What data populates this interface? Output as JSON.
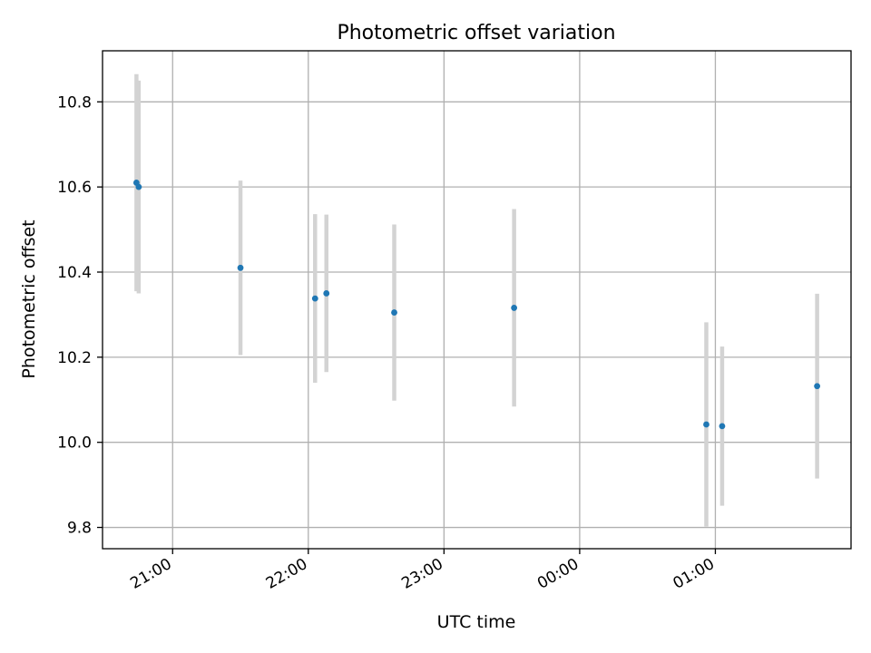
{
  "chart_data": {
    "type": "scatter",
    "title": "Photometric offset variation",
    "xlabel": "UTC time",
    "ylabel": "Photometric offset",
    "x_ticks": [
      "21:00",
      "22:00",
      "23:00",
      "00:00",
      "01:00"
    ],
    "y_ticks": [
      "9.8",
      "10.0",
      "10.2",
      "10.4",
      "10.6",
      "10.8"
    ],
    "xlim": [
      "20:29",
      "02:00"
    ],
    "ylim": [
      9.75,
      10.92
    ],
    "grid": true,
    "colors": {
      "point": "#1f77b4",
      "errorbar": "#d3d3d3",
      "grid": "#b0b0b0"
    },
    "points": [
      {
        "x": "20:44",
        "y": 10.61,
        "err": 0.255
      },
      {
        "x": "20:45",
        "y": 10.6,
        "err": 0.25
      },
      {
        "x": "21:30",
        "y": 10.41,
        "err": 0.205
      },
      {
        "x": "22:03",
        "y": 10.338,
        "err": 0.198
      },
      {
        "x": "22:08",
        "y": 10.35,
        "err": 0.185
      },
      {
        "x": "22:38",
        "y": 10.305,
        "err": 0.207
      },
      {
        "x": "23:31",
        "y": 10.316,
        "err": 0.232
      },
      {
        "x": "00:56",
        "y": 10.042,
        "err": 0.24
      },
      {
        "x": "01:03",
        "y": 10.038,
        "err": 0.187
      },
      {
        "x": "01:45",
        "y": 10.132,
        "err": 0.217
      }
    ]
  }
}
